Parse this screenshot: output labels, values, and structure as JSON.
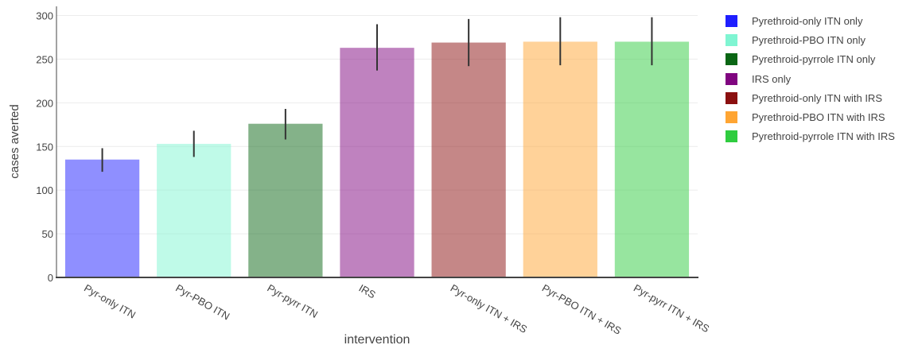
{
  "chart_data": {
    "type": "bar",
    "xlabel": "intervention",
    "ylabel": "cases averted",
    "ylim": [
      0,
      300
    ],
    "yticks": [
      0,
      50,
      100,
      150,
      200,
      250,
      300
    ],
    "grid": true,
    "legend_position": "right",
    "categories": [
      "Pyr-only ITN",
      "Pyr-PBO ITN",
      "Pyr-pyrr ITN",
      "IRS",
      "Pyr-only ITN + IRS",
      "Pyr-PBO ITN + IRS",
      "Pyr-pyrr ITN + IRS"
    ],
    "series": [
      {
        "name": "Pyrethroid-only ITN only",
        "color": "#1f1fff",
        "value": 135,
        "error_low": 121,
        "error_high": 148
      },
      {
        "name": "Pyrethroid-PBO ITN only",
        "color": "#7ff5d2",
        "value": 153,
        "error_low": 138,
        "error_high": 168
      },
      {
        "name": "Pyrethroid-pyrrole ITN only",
        "color": "#0a6614",
        "value": 176,
        "error_low": 158,
        "error_high": 193
      },
      {
        "name": "IRS only",
        "color": "#800580",
        "value": 263,
        "error_low": 237,
        "error_high": 290
      },
      {
        "name": "Pyrethroid-only ITN with IRS",
        "color": "#8b1010",
        "value": 269,
        "error_low": 242,
        "error_high": 296
      },
      {
        "name": "Pyrethroid-PBO ITN with IRS",
        "color": "#ffa533",
        "value": 270,
        "error_low": 243,
        "error_high": 298
      },
      {
        "name": "Pyrethroid-pyrrole ITN with IRS",
        "color": "#2fcc3f",
        "value": 270,
        "error_low": 243,
        "error_high": 298
      }
    ]
  }
}
